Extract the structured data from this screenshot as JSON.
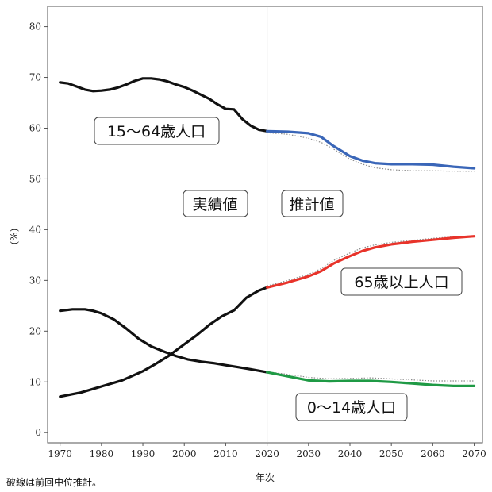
{
  "chart_data": {
    "type": "line",
    "title": "",
    "xlabel": "年次",
    "ylabel": "(%)",
    "xlim": [
      1967,
      2072
    ],
    "ylim": [
      -2,
      84
    ],
    "x_ticks": [
      1970,
      1980,
      1990,
      2000,
      2010,
      2020,
      2030,
      2040,
      2050,
      2060,
      2070
    ],
    "x_tick_labels": [
      "1970",
      "1980",
      "1990",
      "2000",
      "2010",
      "2020",
      "2030",
      "2040",
      "2050",
      "2060",
      "2070"
    ],
    "y_ticks": [
      0,
      10,
      20,
      30,
      40,
      50,
      60,
      70,
      80
    ],
    "y_tick_labels": [
      "0",
      "10",
      "20",
      "30",
      "40",
      "50",
      "60",
      "70",
      "80"
    ],
    "divider_year": 2020,
    "annotations": {
      "actual": "実績値",
      "projected": "推計値",
      "footnote": "破線は前回中位推計。"
    },
    "colors": {
      "actual": "#111111",
      "working_age": "#3a66b8",
      "elderly": "#e8332a",
      "children": "#1f9a45",
      "previous": "#8a8a8a",
      "divider": "#bbbbbb"
    },
    "series": [
      {
        "key": "working_age",
        "label": "15〜64歳人口",
        "actual": {
          "x": [
            1970,
            1972,
            1974,
            1976,
            1978,
            1980,
            1982,
            1984,
            1986,
            1988,
            1990,
            1992,
            1994,
            1996,
            1998,
            2000,
            2002,
            2004,
            2006,
            2008,
            2010,
            2012,
            2014,
            2016,
            2018,
            2020
          ],
          "y": [
            69.0,
            68.8,
            68.2,
            67.6,
            67.3,
            67.4,
            67.6,
            68.0,
            68.6,
            69.3,
            69.8,
            69.8,
            69.6,
            69.2,
            68.6,
            68.1,
            67.4,
            66.6,
            65.8,
            64.7,
            63.8,
            63.7,
            61.8,
            60.5,
            59.7,
            59.4
          ]
        },
        "projected": {
          "x": [
            2020,
            2025,
            2030,
            2033,
            2036,
            2040,
            2043,
            2046,
            2050,
            2055,
            2060,
            2065,
            2070
          ],
          "y": [
            59.4,
            59.3,
            59.0,
            58.3,
            56.5,
            54.5,
            53.6,
            53.1,
            52.9,
            52.9,
            52.8,
            52.4,
            52.1
          ]
        },
        "previous": {
          "x": [
            2020,
            2025,
            2030,
            2033,
            2036,
            2040,
            2043,
            2046,
            2050,
            2055,
            2060,
            2065,
            2070
          ],
          "y": [
            59.1,
            58.8,
            58.0,
            57.2,
            55.9,
            53.9,
            52.9,
            52.2,
            51.8,
            51.6,
            51.6,
            51.5,
            51.5
          ]
        }
      },
      {
        "key": "elderly",
        "label": "65歳以上人口",
        "actual": {
          "x": [
            1970,
            1975,
            1980,
            1985,
            1990,
            1993,
            1996,
            2000,
            2003,
            2006,
            2009,
            2012,
            2015,
            2018,
            2020
          ],
          "y": [
            7.1,
            7.9,
            9.1,
            10.3,
            12.1,
            13.5,
            15.0,
            17.4,
            19.2,
            21.2,
            22.9,
            24.1,
            26.6,
            28.0,
            28.6
          ]
        },
        "projected": {
          "x": [
            2020,
            2025,
            2030,
            2033,
            2036,
            2040,
            2043,
            2046,
            2050,
            2055,
            2060,
            2065,
            2070
          ],
          "y": [
            28.6,
            29.6,
            30.8,
            31.8,
            33.3,
            34.8,
            35.8,
            36.5,
            37.1,
            37.6,
            38.0,
            38.4,
            38.7
          ]
        },
        "previous": {
          "x": [
            2020,
            2025,
            2030,
            2033,
            2036,
            2040,
            2043,
            2046,
            2050,
            2055,
            2060,
            2065,
            2070
          ],
          "y": [
            28.9,
            30.0,
            31.2,
            32.3,
            33.9,
            35.4,
            36.4,
            37.0,
            37.5,
            37.9,
            38.3,
            38.6,
            38.8
          ]
        }
      },
      {
        "key": "children",
        "label": "0〜14歳人口",
        "actual": {
          "x": [
            1970,
            1973,
            1976,
            1978,
            1980,
            1983,
            1986,
            1989,
            1992,
            1995,
            1998,
            2001,
            2004,
            2007,
            2010,
            2013,
            2016,
            2020
          ],
          "y": [
            24.0,
            24.3,
            24.3,
            24.0,
            23.5,
            22.3,
            20.5,
            18.5,
            17.0,
            16.0,
            15.1,
            14.4,
            14.0,
            13.7,
            13.3,
            12.9,
            12.5,
            11.9
          ]
        },
        "projected": {
          "x": [
            2020,
            2025,
            2030,
            2035,
            2040,
            2045,
            2050,
            2055,
            2060,
            2065,
            2070
          ],
          "y": [
            11.9,
            11.1,
            10.3,
            10.1,
            10.2,
            10.2,
            10.0,
            9.7,
            9.4,
            9.2,
            9.2
          ]
        },
        "previous": {
          "x": [
            2020,
            2025,
            2030,
            2035,
            2040,
            2045,
            2050,
            2055,
            2060,
            2065,
            2070
          ],
          "y": [
            12.0,
            11.5,
            10.9,
            10.6,
            10.7,
            10.8,
            10.6,
            10.4,
            10.2,
            10.2,
            10.2
          ]
        }
      }
    ]
  }
}
